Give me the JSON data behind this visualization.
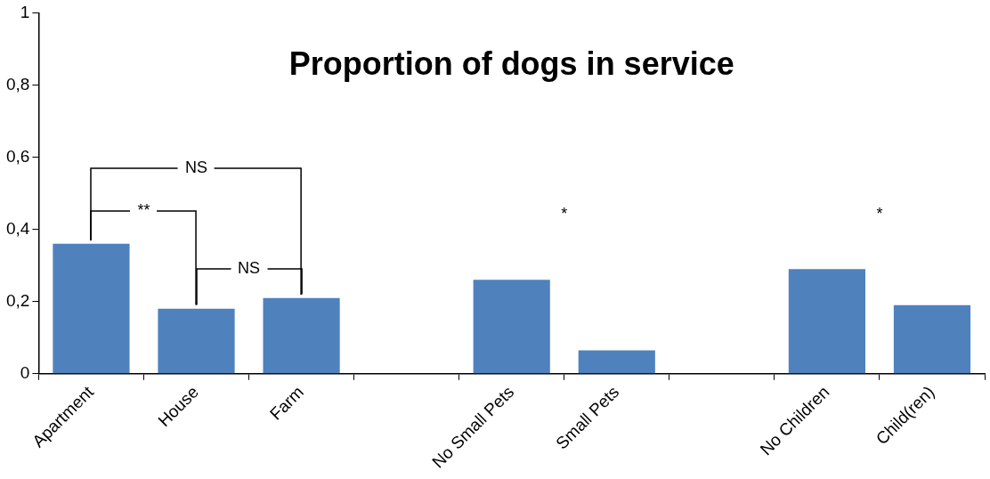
{
  "chart_data": {
    "type": "bar",
    "title": "Proportion of dogs in service",
    "categories": [
      "Apartment",
      "House",
      "Farm",
      null,
      "No Small Pets",
      "Small Pets",
      null,
      "No Children",
      "Child(ren)"
    ],
    "values": [
      0.36,
      0.18,
      0.21,
      null,
      0.26,
      0.065,
      null,
      0.29,
      0.19
    ],
    "color": "#4f81bd",
    "ylim": [
      0,
      1
    ],
    "yticks": [
      {
        "value": 0,
        "label": "0"
      },
      {
        "value": 0.2,
        "label": "0,2"
      },
      {
        "value": 0.4,
        "label": "0,4"
      },
      {
        "value": 0.6,
        "label": "0,6"
      },
      {
        "value": 0.8,
        "label": "0,8"
      },
      {
        "value": 1,
        "label": "1"
      }
    ],
    "grid": false,
    "legend": false,
    "annotations": [
      {
        "text": "**",
        "x": "Apartment",
        "y": 0.36
      },
      {
        "text": "NS",
        "x": "Apartment",
        "y": 0.36
      },
      {
        "text": "NS",
        "x": "House",
        "y": 0.18
      },
      "*",
      "*"
    ]
  }
}
